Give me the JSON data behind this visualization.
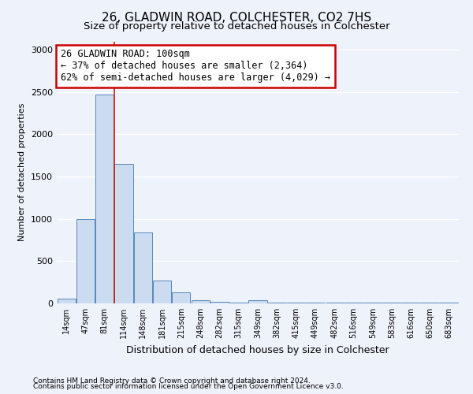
{
  "title1": "26, GLADWIN ROAD, COLCHESTER, CO2 7HS",
  "title2": "Size of property relative to detached houses in Colchester",
  "xlabel": "Distribution of detached houses by size in Colchester",
  "ylabel": "Number of detached properties",
  "bar_labels": [
    "14sqm",
    "47sqm",
    "81sqm",
    "114sqm",
    "148sqm",
    "181sqm",
    "215sqm",
    "248sqm",
    "282sqm",
    "315sqm",
    "349sqm",
    "382sqm",
    "415sqm",
    "449sqm",
    "482sqm",
    "516sqm",
    "549sqm",
    "583sqm",
    "616sqm",
    "650sqm",
    "683sqm"
  ],
  "bar_values": [
    55,
    1000,
    2470,
    1650,
    835,
    270,
    130,
    35,
    15,
    10,
    35,
    5,
    5,
    5,
    5,
    5,
    5,
    5,
    5,
    5,
    5
  ],
  "bar_color": "#ccdcf0",
  "bar_edge_color": "#5588bb",
  "ylim": [
    0,
    3100
  ],
  "yticks": [
    0,
    500,
    1000,
    1500,
    2000,
    2500,
    3000
  ],
  "property_line_x": 2.5,
  "annotation_text": "26 GLADWIN ROAD: 100sqm\n← 37% of detached houses are smaller (2,364)\n62% of semi-detached houses are larger (4,029) →",
  "annotation_box_color": "#ffffff",
  "annotation_box_edge": "#cc0000",
  "red_line_color": "#cc2200",
  "footer1": "Contains HM Land Registry data © Crown copyright and database right 2024.",
  "footer2": "Contains public sector information licensed under the Open Government Licence v3.0.",
  "background_color": "#eef2fb",
  "grid_color": "#ffffff",
  "title1_fontsize": 11,
  "title2_fontsize": 9.5
}
